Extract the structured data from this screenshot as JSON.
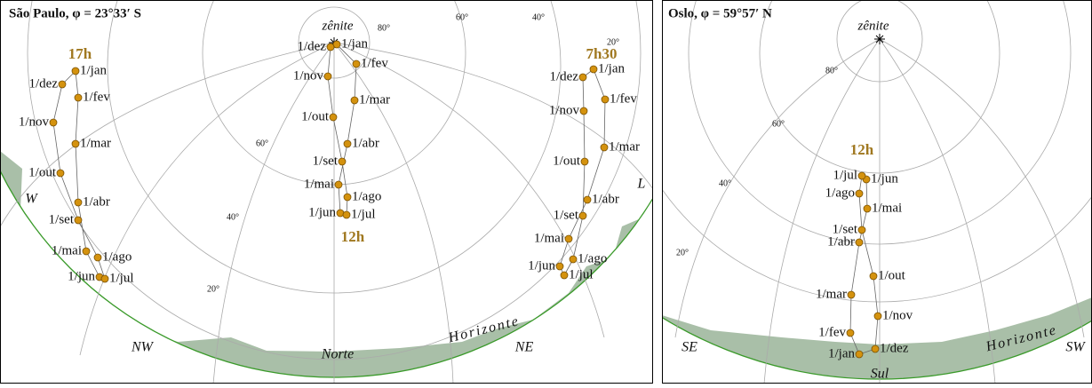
{
  "panels": [
    {
      "title": "São Paulo, φ = 23°33′ S",
      "zenith": "zênite",
      "horizon": "Horizonte",
      "altitudes": [
        "80°",
        "60°",
        "40°",
        "20°",
        "60°",
        "40°",
        "20°"
      ],
      "directions": [
        "W",
        "NW",
        "Norte",
        "NE",
        "L"
      ],
      "analemmas": [
        {
          "time": "17h",
          "labels": [
            "1/jan",
            "1/fev",
            "1/mar",
            "1/abr",
            "1/mai",
            "1/jun",
            "1/jul",
            "1/ago",
            "1/set",
            "1/out",
            "1/nov",
            "1/dez"
          ]
        },
        {
          "time": "12h",
          "labels": [
            "1/jan",
            "1/fev",
            "1/mar",
            "1/abr",
            "1/mai",
            "1/jun",
            "1/jul",
            "1/ago",
            "1/set",
            "1/out",
            "1/nov",
            "1/dez"
          ]
        },
        {
          "time": "7h30",
          "labels": [
            "1/jan",
            "1/fev",
            "1/mar",
            "1/abr",
            "1/mai",
            "1/jun",
            "1/jul",
            "1/ago",
            "1/set",
            "1/out",
            "1/nov",
            "1/dez"
          ]
        }
      ]
    },
    {
      "title": "Oslo, φ = 59°57′ N",
      "zenith": "zênite",
      "horizon": "Horizonte",
      "altitudes": [
        "80°",
        "60°",
        "40°",
        "20°"
      ],
      "directions": [
        "SE",
        "Sul",
        "SW"
      ],
      "analemmas": [
        {
          "time": "12h",
          "labels": [
            "1/jan",
            "1/fev",
            "1/mar",
            "1/abr",
            "1/mai",
            "1/jun",
            "1/jul",
            "1/ago",
            "1/set",
            "1/out",
            "1/nov",
            "1/dez"
          ]
        }
      ]
    }
  ]
}
